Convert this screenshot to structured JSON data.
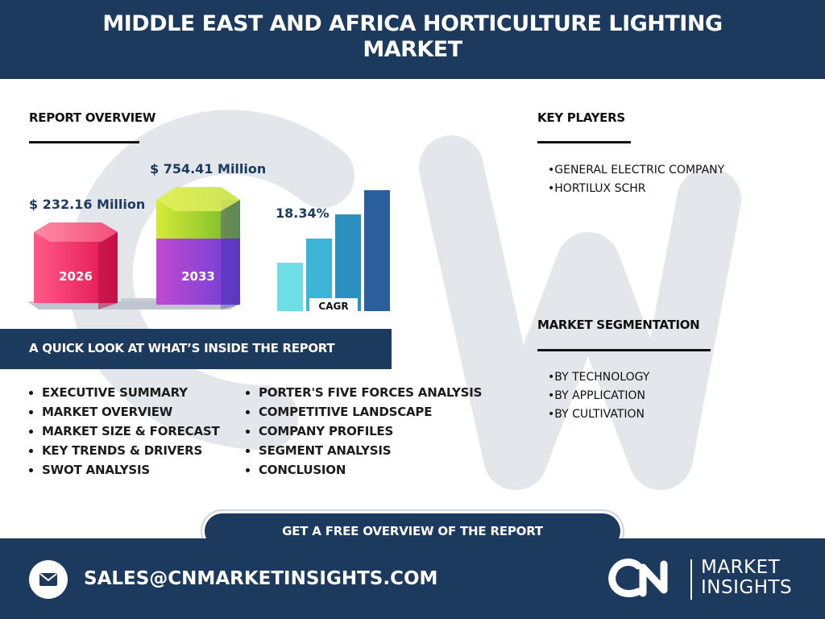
{
  "header": {
    "title": "MIDDLE EAST AND AFRICA HORTICULTURE LIGHTING MARKET"
  },
  "overview": {
    "title": "REPORT OVERVIEW",
    "value_2026": "$ 232.16 Million",
    "value_2033": "$ 754.41 Million",
    "year_2026": "2026",
    "year_2033": "2033",
    "cagr_value": "18.34%",
    "cagr_label": "CAGR"
  },
  "key_players": {
    "title": "KEY PLAYERS",
    "items": [
      "GENERAL ELECTRIC COMPANY",
      "HORTILUX SCHR"
    ]
  },
  "segmentation": {
    "title": "MARKET SEGMENTATION",
    "items": [
      "BY TECHNOLOGY",
      "BY APPLICATION",
      "BY CULTIVATION"
    ]
  },
  "quick_look": {
    "title": "A QUICK LOOK AT WHAT’S INSIDE THE REPORT",
    "col1": [
      "EXECUTIVE SUMMARY",
      "MARKET OVERVIEW",
      "MARKET SIZE & FORECAST",
      "KEY TRENDS & DRIVERS",
      "SWOT ANALYSIS"
    ],
    "col2": [
      "PORTER'S FIVE FORCES ANALYSIS",
      "COMPETITIVE LANDSCAPE",
      "COMPANY PROFILES",
      "SEGMENT ANALYSIS",
      "CONCLUSION"
    ]
  },
  "cta": {
    "label": "GET A FREE OVERVIEW OF THE REPORT"
  },
  "footer": {
    "email": "SALES@CNMARKETINSIGHTS.COM",
    "logo_line1": "MARKET",
    "logo_line2": "INSIGHTS",
    "logo_mark": "CN"
  },
  "colors": {
    "navy": "#1b3a5e",
    "hex_2026": "#ee1d5a",
    "hex_2033_top": "#9bd42a",
    "hex_2033_body": "#8a3fd0",
    "cagr_bars": [
      "#6fdde6",
      "#3cb4d6",
      "#2b8fc0",
      "#2a5f9e"
    ]
  },
  "icons": {
    "mail": "mail-icon",
    "logo": "cn-logo-icon"
  }
}
